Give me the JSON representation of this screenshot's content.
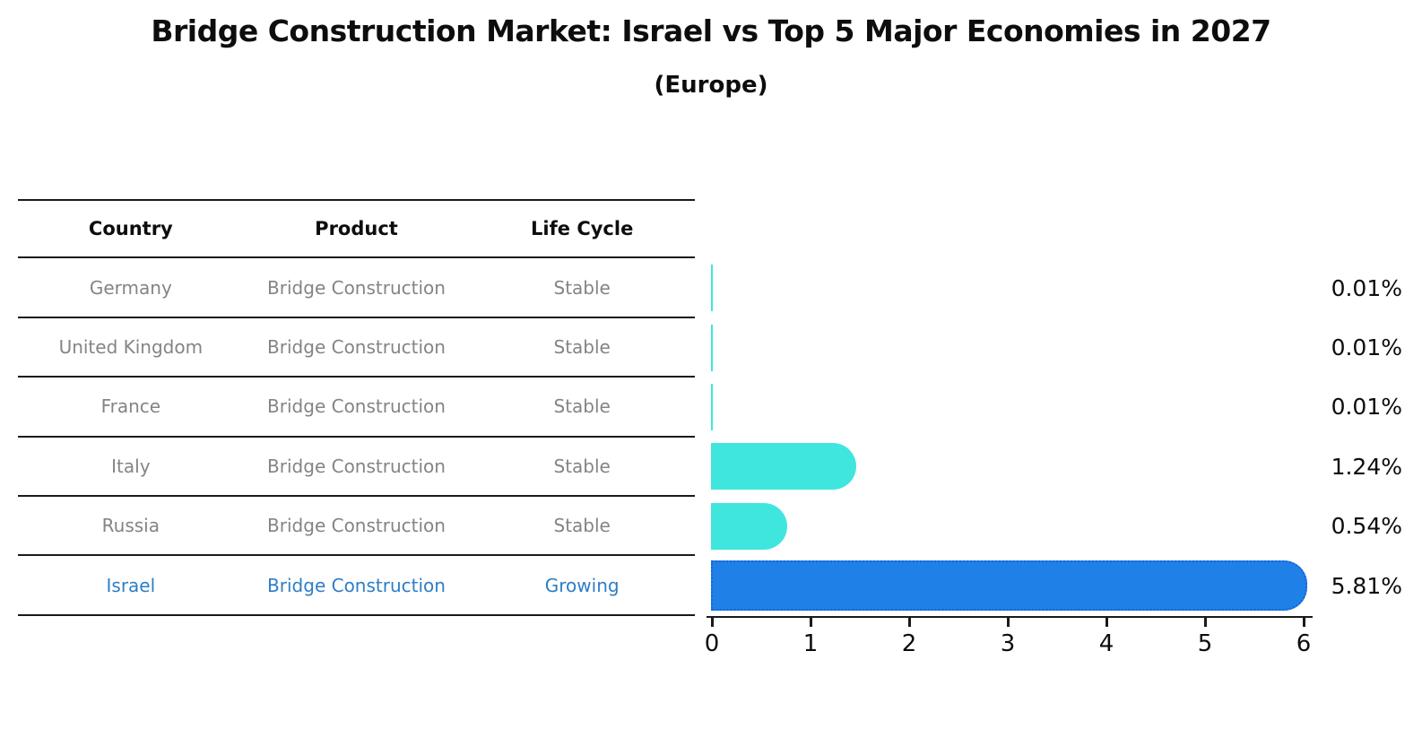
{
  "title": "Bridge Construction Market: Israel vs Top 5 Major Economies in 2027",
  "subtitle": "(Europe)",
  "table": {
    "headers": [
      "Country",
      "Product",
      "Life Cycle"
    ],
    "rows": [
      {
        "country": "Germany",
        "product": "Bridge Construction",
        "life_cycle": "Stable",
        "highlight": false
      },
      {
        "country": "United Kingdom",
        "product": "Bridge Construction",
        "life_cycle": "Stable",
        "highlight": false
      },
      {
        "country": "France",
        "product": "Bridge Construction",
        "life_cycle": "Stable",
        "highlight": false
      },
      {
        "country": "Italy",
        "product": "Bridge Construction",
        "life_cycle": "Stable",
        "highlight": false
      },
      {
        "country": "Russia",
        "product": "Bridge Construction",
        "life_cycle": "Stable",
        "highlight": false
      },
      {
        "country": "Israel",
        "product": "Bridge Construction",
        "life_cycle": "Growing",
        "highlight": true
      }
    ]
  },
  "chart_data": {
    "type": "bar",
    "orientation": "horizontal",
    "title": "Bridge Construction Market: Israel vs Top 5 Major Economies in 2027",
    "subtitle": "(Europe)",
    "categories": [
      "Germany",
      "United Kingdom",
      "France",
      "Italy",
      "Russia",
      "Israel"
    ],
    "values": [
      0.01,
      0.01,
      0.01,
      1.24,
      0.54,
      5.81
    ],
    "value_labels": [
      "0.01%",
      "0.01%",
      "0.01%",
      "1.24%",
      "0.54%",
      "5.81%"
    ],
    "xlabel": "",
    "ylabel": "",
    "xlim": [
      0,
      6
    ],
    "x_ticks": [
      "0",
      "1",
      "2",
      "3",
      "4",
      "5",
      "6"
    ],
    "grid": false,
    "legend": false,
    "highlight_index": 5,
    "colors": {
      "default_bar": "#3FE6DE",
      "highlight_bar": "#1F80E8",
      "highlight_bar_border": "#1467D2",
      "highlight_text": "#2E7EC6",
      "body_text": "#848484",
      "ink": "#0d0d0d"
    }
  }
}
